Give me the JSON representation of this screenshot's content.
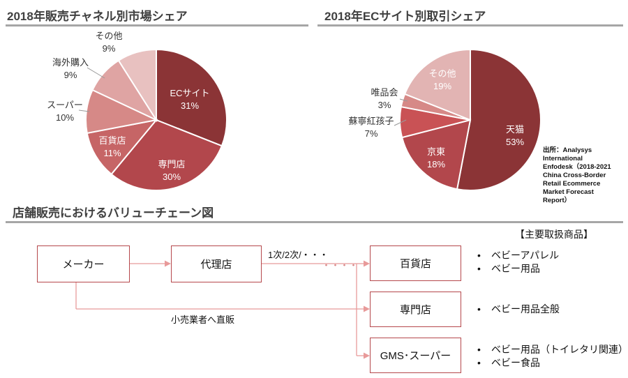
{
  "chart_data": [
    {
      "type": "pie",
      "title": "2018年販売チャネル別市場シェア",
      "slices": [
        {
          "name": "ECサイト",
          "value": 31,
          "label": "31%",
          "color": "#8b3436"
        },
        {
          "name": "専門店",
          "value": 30,
          "label": "30%",
          "color": "#b2474c"
        },
        {
          "name": "百貨店",
          "value": 11,
          "label": "11%",
          "color": "#c66566"
        },
        {
          "name": "スーパー",
          "value": 10,
          "label": "10%",
          "color": "#d68987"
        },
        {
          "name": "海外購入",
          "value": 9,
          "label": "9%",
          "color": "#dfa4a3"
        },
        {
          "name": "その他",
          "value": 9,
          "label": "9%",
          "color": "#e8c1c0"
        }
      ]
    },
    {
      "type": "pie",
      "title": "2018年ECサイト別取引シェア",
      "slices": [
        {
          "name": "天猫",
          "value": 53,
          "label": "53%",
          "color": "#8b3436"
        },
        {
          "name": "京東",
          "value": 18,
          "label": "18%",
          "color": "#b2474c"
        },
        {
          "name": "蘇寧紅孩子",
          "value": 7,
          "label": "7%",
          "color": "#c95255"
        },
        {
          "name": "唯品会",
          "value": 3,
          "label": "3%",
          "color": "#d68987"
        },
        {
          "name": "その他",
          "value": 19,
          "label": "19%",
          "color": "#e2b4b3"
        }
      ]
    }
  ],
  "source_note": [
    "出所：Analysys",
    "International",
    "Enfodesk（2018-2021",
    "China Cross-Border",
    "Retail Ecommerce",
    "Market Forecast",
    "Report）"
  ],
  "value_chain": {
    "title": "店舗販売におけるバリューチェーン図",
    "main_products_heading": "【主要取扱商品】",
    "maker": "メーカー",
    "agent": "代理店",
    "tiers_label": "1次/2次/・・・",
    "dots": "・・・・",
    "direct_label": "小売業者へ直販",
    "stores": [
      {
        "name": "百貨店",
        "products": [
          "ベビーアパレル",
          "ベビー用品"
        ]
      },
      {
        "name": "専門店",
        "products": [
          "ベビー用品全般"
        ]
      },
      {
        "name": "GMS･スーパー",
        "products": [
          "ベビー用品（トイレタリ関連）",
          "ベビー食品"
        ]
      }
    ]
  },
  "colors": {
    "arrow": "#e89a9a",
    "box_border": "#b5474b",
    "rule": "#a6a6a6"
  }
}
